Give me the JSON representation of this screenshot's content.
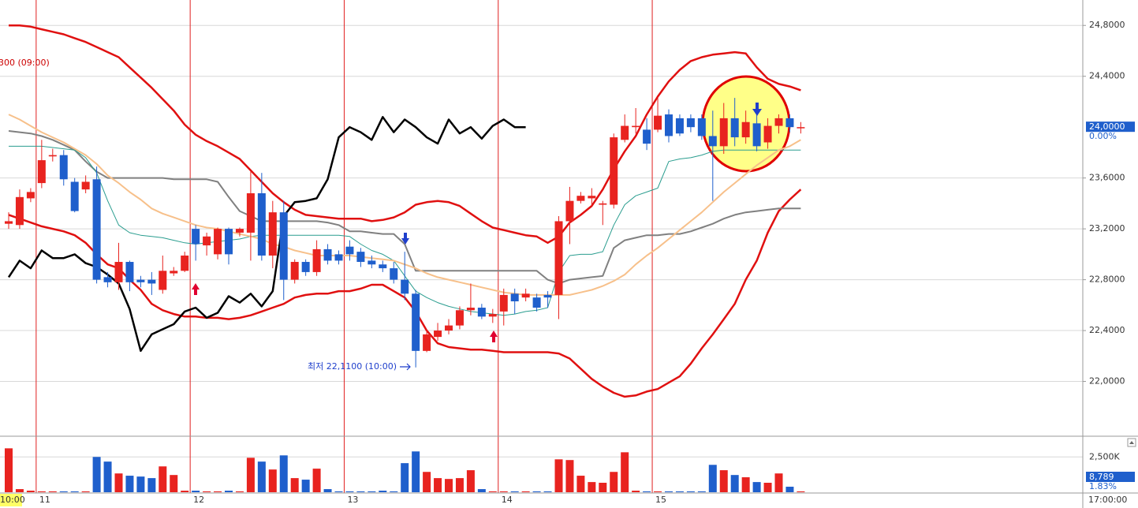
{
  "chart_data": {
    "type": "candlestick",
    "categories": [
      null,
      null,
      null,
      "11",
      null,
      null,
      null,
      null,
      null,
      null,
      null,
      null,
      null,
      null,
      null,
      null,
      null,
      "12",
      null,
      null,
      null,
      null,
      null,
      null,
      null,
      null,
      null,
      null,
      null,
      null,
      null,
      "13",
      null,
      null,
      null,
      null,
      null,
      null,
      null,
      null,
      null,
      null,
      null,
      null,
      null,
      "14",
      null,
      null,
      null,
      null,
      null,
      null,
      null,
      null,
      null,
      null,
      null,
      null,
      null,
      "15",
      null,
      null,
      null,
      null,
      null,
      null,
      null,
      null,
      null,
      null,
      null,
      null,
      null
    ],
    "start_label": "10:00",
    "end_label": "17:00:00",
    "open": [
      23240,
      23230,
      23440,
      23560,
      23770,
      23780,
      23570,
      23510,
      23590,
      22820,
      22780,
      22940,
      22800,
      22800,
      22720,
      22850,
      22870,
      23200,
      23070,
      23000,
      23200,
      23170,
      23170,
      23480,
      22990,
      23330,
      22800,
      22940,
      22860,
      23040,
      23000,
      23060,
      23020,
      22950,
      22920,
      22890,
      22800,
      22690,
      22240,
      22350,
      22400,
      22440,
      22560,
      22580,
      22510,
      22550,
      22690,
      22660,
      22660,
      22680,
      22680,
      23260,
      23420,
      23440,
      23390,
      23390,
      23900,
      24000,
      23980,
      23980,
      24100,
      24070,
      24070,
      24070,
      23930,
      23850,
      24070,
      23920,
      24030,
      23880,
      24010,
      24070,
      24000
    ],
    "high": [
      23330,
      23510,
      23520,
      23900,
      23830,
      23820,
      23600,
      23620,
      23690,
      22860,
      23090,
      22950,
      22830,
      22860,
      22990,
      22900,
      23020,
      23230,
      23170,
      23210,
      23210,
      23210,
      23650,
      23640,
      23420,
      23420,
      22960,
      22960,
      23110,
      23080,
      23030,
      23110,
      23050,
      22990,
      22950,
      22940,
      23020,
      22720,
      22410,
      22460,
      22490,
      22590,
      22770,
      22610,
      22570,
      22730,
      22730,
      22730,
      22690,
      22710,
      23300,
      23530,
      23490,
      23520,
      23420,
      23950,
      24100,
      24150,
      24070,
      24230,
      24140,
      24100,
      24100,
      24100,
      24130,
      24190,
      24230,
      24130,
      24100,
      24070,
      24100,
      24100,
      24040
    ],
    "low": [
      23200,
      23200,
      23410,
      23520,
      23730,
      23540,
      23330,
      23480,
      22770,
      22740,
      22720,
      22710,
      22740,
      22680,
      22690,
      22830,
      22860,
      22950,
      22990,
      22960,
      22920,
      23140,
      22950,
      22950,
      22890,
      22640,
      22770,
      22830,
      22830,
      22920,
      22920,
      22950,
      22900,
      22890,
      22860,
      22770,
      22640,
      22110,
      22230,
      22320,
      22370,
      22410,
      22520,
      22490,
      22460,
      22440,
      22530,
      22630,
      22550,
      22580,
      22490,
      23080,
      23400,
      23380,
      23230,
      23360,
      23880,
      23950,
      23820,
      23960,
      23880,
      23930,
      23960,
      23900,
      23420,
      23790,
      23850,
      23870,
      23810,
      23830,
      23950,
      23960,
      23950
    ],
    "close": [
      23260,
      23450,
      23490,
      23740,
      23780,
      23590,
      23340,
      23570,
      22800,
      22780,
      22940,
      22780,
      22780,
      22770,
      22870,
      22870,
      22990,
      23080,
      23140,
      23200,
      23000,
      23200,
      23480,
      22990,
      23330,
      22800,
      22940,
      22860,
      23040,
      22950,
      22950,
      23000,
      22940,
      22920,
      22890,
      22800,
      22690,
      22240,
      22370,
      22400,
      22440,
      22560,
      22580,
      22510,
      22530,
      22680,
      22630,
      22690,
      22580,
      22660,
      23260,
      23420,
      23460,
      23460,
      23400,
      23920,
      24010,
      24010,
      23870,
      24090,
      23930,
      23950,
      24000,
      23930,
      23850,
      24070,
      23920,
      24040,
      23850,
      24010,
      24070,
      24000,
      24000
    ],
    "up_color": "#e8231f",
    "down_color": "#1f5fcc",
    "lines": [
      {
        "color": "#e01010",
        "values": [
          24800,
          24800,
          24790,
          24770,
          24750,
          24730,
          24700,
          24670,
          24630,
          24590,
          24550,
          24470,
          24390,
          24310,
          24220,
          24130,
          24020,
          23940,
          23890,
          23850,
          23800,
          23750,
          23660,
          23570,
          23480,
          23410,
          23350,
          23310,
          23300,
          23290,
          23280,
          23280,
          23280,
          23260,
          23270,
          23290,
          23330,
          23390,
          23410,
          23420,
          23410,
          23380,
          23320,
          23260,
          23210,
          23190,
          23170,
          23150,
          23140,
          23090,
          23140,
          23250,
          23310,
          23380,
          23510,
          23670,
          23810,
          23930,
          24100,
          24240,
          24360,
          24450,
          24520,
          24550,
          24570,
          24580,
          24590,
          24580,
          24470,
          24380,
          24340,
          24320,
          24290
        ]
      },
      {
        "color": "#e01010",
        "values": [
          23310,
          23280,
          23250,
          23220,
          23200,
          23180,
          23150,
          23090,
          23000,
          22920,
          22890,
          22800,
          22720,
          22610,
          22560,
          22530,
          22510,
          22510,
          22500,
          22500,
          22490,
          22500,
          22520,
          22550,
          22580,
          22610,
          22660,
          22680,
          22690,
          22690,
          22710,
          22710,
          22730,
          22760,
          22760,
          22710,
          22660,
          22550,
          22400,
          22300,
          22270,
          22260,
          22250,
          22250,
          22240,
          22230,
          22230,
          22230,
          22230,
          22230,
          22220,
          22180,
          22100,
          22020,
          21960,
          21910,
          21880,
          21890,
          21920,
          21940,
          21990,
          22040,
          22140,
          22260,
          22370,
          22490,
          22610,
          22800,
          22950,
          23170,
          23340,
          23430,
          23510
        ]
      },
      {
        "color": "#808080",
        "values": [
          23970,
          23960,
          23950,
          23930,
          23900,
          23860,
          23820,
          23730,
          23650,
          23600,
          23600,
          23600,
          23600,
          23600,
          23600,
          23590,
          23590,
          23590,
          23590,
          23570,
          23450,
          23340,
          23300,
          23260,
          23260,
          23260,
          23260,
          23260,
          23260,
          23250,
          23230,
          23180,
          23180,
          23170,
          23160,
          23160,
          23080,
          22870,
          22870,
          22870,
          22870,
          22870,
          22870,
          22870,
          22870,
          22870,
          22870,
          22870,
          22870,
          22800,
          22770,
          22800,
          22810,
          22820,
          22830,
          23050,
          23110,
          23130,
          23150,
          23150,
          23160,
          23160,
          23180,
          23210,
          23240,
          23280,
          23310,
          23330,
          23340,
          23350,
          23360,
          23360,
          23360
        ]
      },
      {
        "color": "#2a9d8f",
        "values": [
          23850,
          23850,
          23850,
          23850,
          23840,
          23830,
          23820,
          23760,
          23640,
          23420,
          23230,
          23170,
          23150,
          23140,
          23130,
          23110,
          23090,
          23080,
          23090,
          23100,
          23110,
          23120,
          23140,
          23150,
          23150,
          23150,
          23150,
          23150,
          23150,
          23150,
          23150,
          23140,
          23080,
          23030,
          23000,
          22950,
          22830,
          22710,
          22660,
          22620,
          22590,
          22570,
          22550,
          22540,
          22530,
          22520,
          22530,
          22550,
          22560,
          22580,
          22860,
          22990,
          23000,
          23000,
          23020,
          23230,
          23390,
          23460,
          23490,
          23520,
          23730,
          23750,
          23760,
          23780,
          23810,
          23820,
          23820,
          23820,
          23820,
          23820,
          23820,
          23820,
          23820
        ]
      },
      {
        "color": "#f7c08a",
        "values": [
          24100,
          24060,
          24010,
          23960,
          23920,
          23880,
          23830,
          23780,
          23710,
          23620,
          23560,
          23490,
          23430,
          23360,
          23320,
          23290,
          23260,
          23230,
          23210,
          23200,
          23180,
          23160,
          23140,
          23120,
          23080,
          23060,
          23030,
          23010,
          22990,
          22990,
          22990,
          22990,
          22980,
          22970,
          22960,
          22950,
          22920,
          22890,
          22850,
          22820,
          22800,
          22780,
          22760,
          22740,
          22720,
          22700,
          22690,
          22680,
          22680,
          22680,
          22680,
          22680,
          22700,
          22720,
          22750,
          22790,
          22840,
          22920,
          22990,
          23050,
          23120,
          23190,
          23260,
          23330,
          23410,
          23490,
          23560,
          23630,
          23700,
          23760,
          23820,
          23850,
          23900
        ]
      },
      {
        "color": "#000000",
        "values": [
          22820,
          22950,
          22890,
          23030,
          22970,
          22970,
          23000,
          22930,
          22900,
          22840,
          22770,
          22570,
          22240,
          22370,
          22410,
          22450,
          22550,
          22580,
          22500,
          22540,
          22670,
          22620,
          22690,
          22590,
          22710,
          23300,
          23410,
          23420,
          23440,
          23590,
          23920,
          24000,
          23960,
          23900,
          24080,
          23960,
          24060,
          24000,
          23920,
          23870,
          24060,
          23950,
          24000,
          23910,
          24010,
          24060,
          24000,
          24000,
          null,
          null,
          null,
          null,
          null,
          null,
          null,
          null,
          null,
          null,
          null,
          null,
          null,
          null,
          null,
          null,
          null,
          null,
          null,
          null,
          null,
          null,
          null,
          null,
          null
        ]
      }
    ],
    "ylim": [
      21600,
      25000
    ],
    "yticks": [
      {
        "value": 24800,
        "label": "24,8000"
      },
      {
        "value": 24400,
        "label": "24,4000"
      },
      {
        "value": 23600,
        "label": "23,6000"
      },
      {
        "value": 23200,
        "label": "23,2000"
      },
      {
        "value": 22800,
        "label": "22,8000"
      },
      {
        "value": 22400,
        "label": "22,4000"
      },
      {
        "value": 22000,
        "label": "22,0000"
      }
    ],
    "grid": true,
    "current_price": {
      "value": 24000,
      "label": "24,0000",
      "change": "0.00%"
    },
    "annotations": [
      "300 (09:00)",
      "최저 22,1100 (10:00)"
    ],
    "volume": [
      3110,
      220,
      110,
      60,
      60,
      60,
      60,
      60,
      2500,
      2170,
      1330,
      1170,
      1110,
      1000,
      1830,
      1220,
      110,
      110,
      60,
      60,
      110,
      60,
      2440,
      2170,
      1610,
      2610,
      1000,
      890,
      1670,
      220,
      60,
      60,
      60,
      60,
      110,
      60,
      2060,
      2890,
      1440,
      1000,
      940,
      1000,
      1560,
      220,
      60,
      60,
      60,
      60,
      60,
      60,
      2330,
      2280,
      1170,
      720,
      670,
      1440,
      2830,
      110,
      60,
      60,
      60,
      60,
      60,
      60,
      1940,
      1560,
      1220,
      1060,
      720,
      670,
      1330,
      390,
      60
    ],
    "volume_ylim": [
      0,
      3800
    ],
    "volume_yticks": [
      {
        "value": 2500,
        "label": "2,500K"
      }
    ],
    "volume_current": "8,789",
    "volume_change": "1.83%"
  }
}
